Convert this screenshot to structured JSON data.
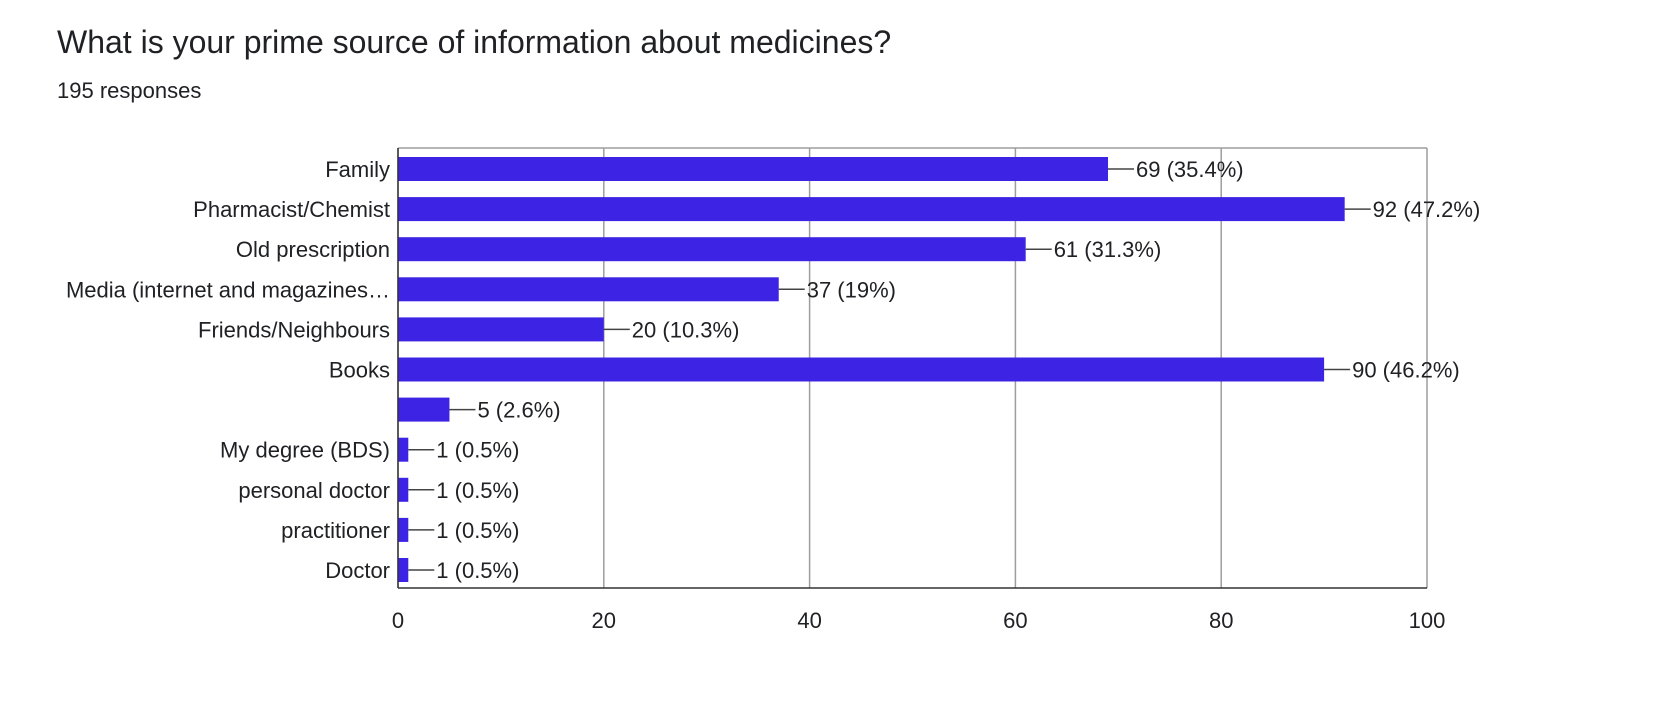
{
  "question": {
    "title": "What is your prime source of information about medicines?",
    "responses": "195 responses"
  },
  "colors": {
    "bar": "#3d24e4",
    "grid": "#9e9e9e",
    "axis": "#333333",
    "text": "#202124",
    "leader": "#444444"
  },
  "chart_data": {
    "type": "bar",
    "orientation": "horizontal",
    "title": "What is your prime source of information about medicines?",
    "subtitle": "195 responses",
    "categories": [
      "Family",
      "Pharmacist/Chemist",
      "Old prescription",
      "Media (internet and magazines…",
      "Friends/Neighbours",
      "Books",
      "",
      "My degree (BDS)",
      "personal doctor",
      "practitioner",
      "Doctor"
    ],
    "values": [
      69,
      92,
      61,
      37,
      20,
      90,
      5,
      1,
      1,
      1,
      1
    ],
    "value_labels": [
      "69 (35.4%)",
      "92 (47.2%)",
      "61 (31.3%)",
      "37 (19%)",
      "20 (10.3%)",
      "90 (46.2%)",
      "5 (2.6%)",
      "1 (0.5%)",
      "1 (0.5%)",
      "1 (0.5%)",
      "1 (0.5%)"
    ],
    "xlim": [
      0,
      100
    ],
    "xticks": [
      0,
      20,
      40,
      60,
      80,
      100
    ],
    "xlabel": "",
    "ylabel": "",
    "grid": true
  }
}
